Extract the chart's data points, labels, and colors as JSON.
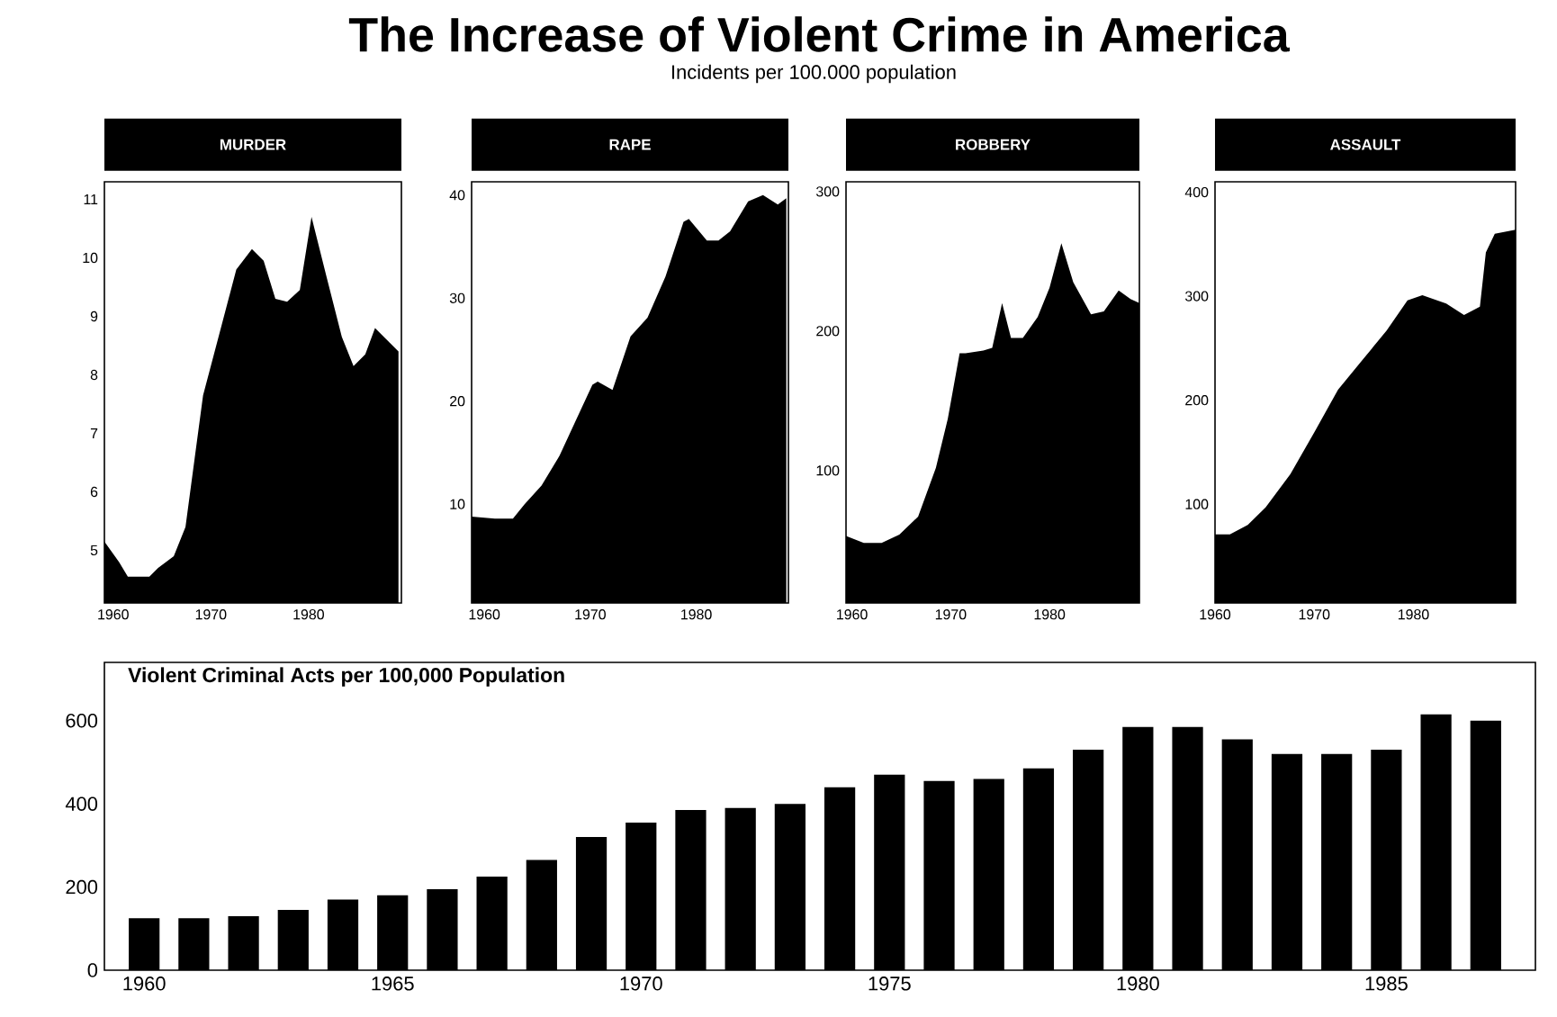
{
  "chart_data": [
    {
      "type": "other",
      "title": "The Increase of Violent Crime in America",
      "subtitle": "Incidents per 100.000 population"
    },
    {
      "type": "area",
      "title": "MURDER",
      "color": "#000000",
      "xlim": [
        1959.1,
        1989.5
      ],
      "ylim": [
        4.1,
        11.3
      ],
      "xticks": [
        1960,
        1970,
        1980
      ],
      "yticks": [
        5,
        6,
        7,
        8,
        9,
        10,
        11
      ],
      "x": [
        1959.1,
        1960.6,
        1961.5,
        1963.7,
        1964.6,
        1966.2,
        1967.4,
        1969.2,
        1971.1,
        1972.6,
        1974.2,
        1975.4,
        1976.6,
        1977.8,
        1979.1,
        1980.3,
        1981.8,
        1983.4,
        1984.6,
        1985.8,
        1986.8,
        1988.3,
        1989.2
      ],
      "values": [
        5.15,
        4.8,
        4.55,
        4.55,
        4.7,
        4.9,
        5.4,
        7.65,
        8.85,
        9.8,
        10.15,
        9.95,
        9.3,
        9.25,
        9.45,
        10.7,
        9.7,
        8.65,
        8.15,
        8.35,
        8.8,
        8.55,
        8.4
      ]
    },
    {
      "type": "area",
      "title": "RAPE",
      "color": "#000000",
      "xlim": [
        1958.8,
        1988.7
      ],
      "ylim": [
        0.4,
        41.3
      ],
      "xticks": [
        1960,
        1970,
        1980
      ],
      "yticks": [
        10,
        20,
        30,
        40
      ],
      "x": [
        1958.8,
        1961,
        1962.7,
        1963.8,
        1965.4,
        1967.1,
        1968.8,
        1970.2,
        1970.7,
        1972.1,
        1973.8,
        1975.4,
        1977.1,
        1978.8,
        1979.3,
        1981,
        1982.1,
        1983.2,
        1984.9,
        1986.3,
        1987.7,
        1988.5
      ],
      "values": [
        8.8,
        8.6,
        8.6,
        10,
        11.8,
        14.7,
        18.5,
        21.6,
        21.9,
        21.1,
        26.3,
        28.1,
        32.1,
        37.4,
        37.7,
        35.6,
        35.6,
        36.5,
        39.4,
        40,
        39.1,
        39.7
      ]
    },
    {
      "type": "area",
      "title": "ROBBERY",
      "color": "#000000",
      "xlim": [
        1959.4,
        1989.1
      ],
      "ylim": [
        5,
        307
      ],
      "xticks": [
        1960,
        1970,
        1980
      ],
      "yticks": [
        100,
        200,
        300
      ],
      "x": [
        1959.4,
        1961.2,
        1963,
        1964.8,
        1966.7,
        1968.5,
        1969.7,
        1970.9,
        1971.5,
        1973.3,
        1974.2,
        1975.2,
        1976.1,
        1977.3,
        1978.8,
        1980,
        1981.2,
        1982.4,
        1984.2,
        1985.5,
        1987,
        1988.2,
        1989.1
      ],
      "values": [
        53,
        48,
        48,
        54,
        67,
        102,
        137,
        184,
        184,
        186,
        188,
        220,
        195,
        195,
        210,
        231,
        263,
        235,
        212,
        214,
        229,
        223,
        220
      ]
    },
    {
      "type": "area",
      "title": "ASSAULT",
      "color": "#000000",
      "xlim": [
        1960,
        1990.3
      ],
      "ylim": [
        5,
        410
      ],
      "xticks": [
        1960,
        1970,
        1980
      ],
      "yticks": [
        100,
        200,
        300,
        400
      ],
      "x": [
        1960,
        1961.5,
        1963.3,
        1965.1,
        1967.6,
        1970,
        1972.4,
        1974.8,
        1977.3,
        1979.4,
        1980.9,
        1983.3,
        1985.1,
        1986.7,
        1987.3,
        1988.2,
        1990.3
      ],
      "values": [
        71,
        71,
        80,
        97,
        129,
        169,
        210,
        238,
        267,
        296,
        301,
        293,
        282,
        290,
        342,
        360,
        364
      ]
    },
    {
      "type": "bar",
      "title": "Violent Criminal Acts per 100,000 Population",
      "color": "#000000",
      "xlim": [
        1959.2,
        1988
      ],
      "ylim": [
        0,
        740
      ],
      "xticks": [
        1960,
        1965,
        1970,
        1975,
        1980,
        1985
      ],
      "yticks": [
        0,
        200,
        400,
        600
      ],
      "x": [
        1960,
        1961,
        1962,
        1963,
        1964,
        1965,
        1966,
        1967,
        1968,
        1969,
        1970,
        1971,
        1972,
        1973,
        1974,
        1975,
        1976,
        1977,
        1978,
        1979,
        1980,
        1981,
        1982,
        1983,
        1984,
        1985,
        1986,
        1987
      ],
      "values": [
        125,
        125,
        130,
        145,
        170,
        180,
        195,
        225,
        265,
        320,
        355,
        385,
        390,
        400,
        440,
        470,
        455,
        460,
        485,
        530,
        585,
        585,
        555,
        520,
        520,
        530,
        615,
        600
      ]
    }
  ]
}
